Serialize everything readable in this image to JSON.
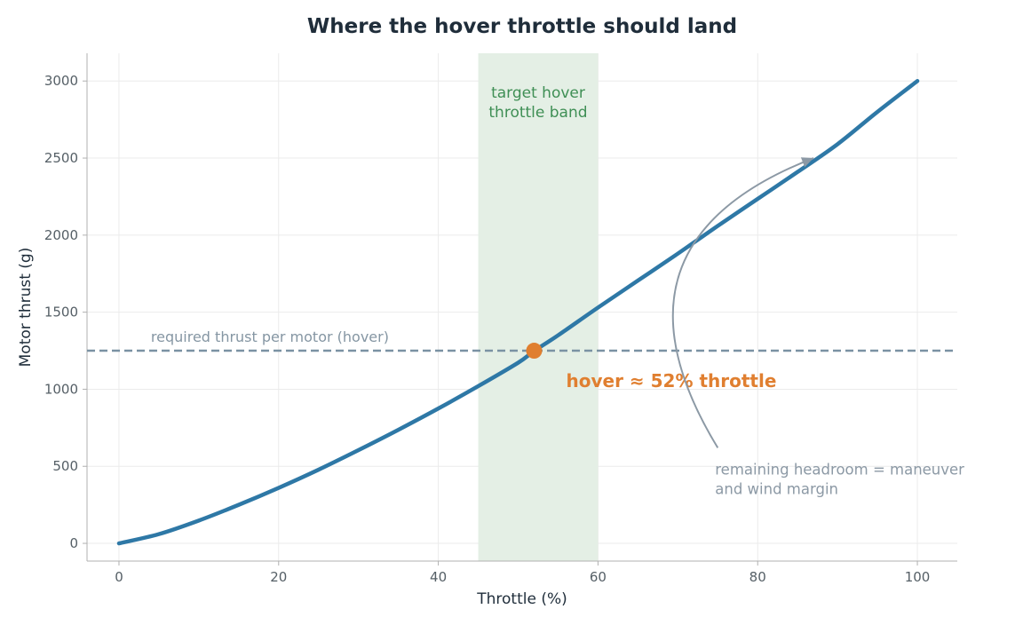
{
  "chart_data": {
    "type": "line",
    "title": "Where the hover throttle should land",
    "xlabel": "Throttle (%)",
    "ylabel": "Motor thrust (g)",
    "xlim": [
      -4,
      105
    ],
    "ylim": [
      -115,
      3180
    ],
    "x_ticks": [
      0,
      20,
      40,
      60,
      80,
      100
    ],
    "y_ticks": [
      0,
      500,
      1000,
      1500,
      2000,
      2500,
      3000
    ],
    "grid": true,
    "series": [
      {
        "x": [
          0,
          5,
          10,
          15,
          20,
          25,
          30,
          35,
          40,
          45,
          50,
          52,
          55,
          60,
          65,
          70,
          75,
          80,
          85,
          90,
          95,
          100
        ],
        "y": [
          0,
          60,
          148,
          250,
          360,
          478,
          605,
          737,
          875,
          1020,
          1172,
          1248,
          1350,
          1530,
          1705,
          1880,
          2060,
          2235,
          2410,
          2590,
          2800,
          3000
        ],
        "color": "#2e78a6"
      }
    ],
    "reference_line": {
      "y": 1250,
      "label": "required thrust per motor (hover)",
      "color": "#7a92a3"
    },
    "band": {
      "x_start": 45,
      "x_end": 60,
      "label_lines": [
        "target hover",
        "throttle band"
      ],
      "color": "#e4efe5"
    },
    "highlight_point": {
      "x": 52,
      "y": 1250,
      "label": "hover ≈ 52% throttle",
      "color": "#e07f30"
    },
    "annotation": {
      "label_lines": [
        "remaining headroom = maneuver",
        "and wind margin"
      ],
      "arrow_from": [
        75,
        620
      ],
      "arrow_to": [
        87,
        2500
      ],
      "color": "#8c99a5"
    }
  }
}
